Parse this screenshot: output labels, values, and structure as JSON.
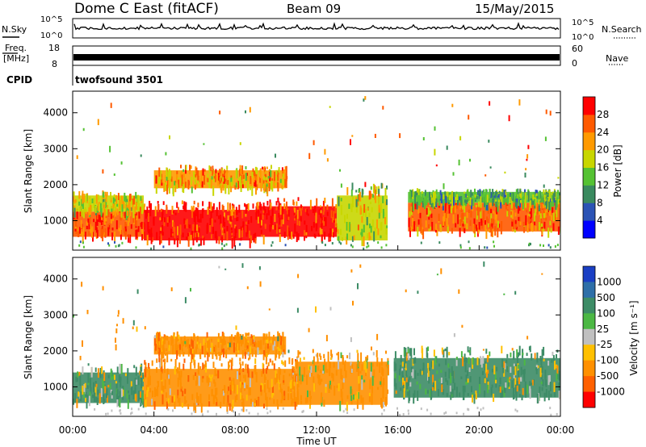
{
  "header": {
    "station": "Dome C East (fitACF)",
    "beam": "Beam 09",
    "date": "15/May/2015"
  },
  "sky_panel": {
    "left_label": "N.Sky",
    "left_ticks": [
      "10^5",
      "10^0"
    ],
    "right_label": "N.Search",
    "right_ticks": [
      "10^5",
      "10^0"
    ]
  },
  "freq_panel": {
    "left_label_1": "Freq.",
    "left_label_2": "[MHz]",
    "left_ticks": [
      "18",
      "8"
    ],
    "right_label": "Nave",
    "right_ticks": [
      "60",
      "0"
    ]
  },
  "cpid": {
    "label": "CPID",
    "value": "twofsound 3501"
  },
  "colors": {
    "power_scale": [
      "#0000ff",
      "#2b53b5",
      "#3a8a5f",
      "#55c233",
      "#c8d600",
      "#ff9a00",
      "#ff5a00",
      "#ff0000"
    ],
    "velocity_scale": [
      "#1a3fc4",
      "#2e6fa8",
      "#3d8c66",
      "#4cb844",
      "#c0c0c0",
      "#ffc000",
      "#ff9000",
      "#ff6000",
      "#ff0000"
    ]
  },
  "chart_data": [
    {
      "type": "heatmap",
      "title": "",
      "xlabel": "Time UT",
      "ylabel": "Slant Range [km]",
      "x_ticks": [
        "00:00",
        "04:00",
        "08:00",
        "12:00",
        "16:00",
        "20:00",
        "00:00"
      ],
      "y_ticks": [
        1000,
        2000,
        3000,
        4000
      ],
      "xlim_hours": [
        0,
        24
      ],
      "ylim_km": [
        180,
        4600
      ],
      "colorbar": {
        "label": "Power [dB]",
        "ticks": [
          "4",
          "8",
          "12",
          "16",
          "20",
          "24",
          "28"
        ],
        "range": [
          0,
          32
        ]
      },
      "regions": [
        {
          "t0": 0.0,
          "t1": 3.5,
          "r0": 550,
          "r1": 1250,
          "value": 27
        },
        {
          "t0": 0.0,
          "t1": 3.5,
          "r0": 1250,
          "r1": 1700,
          "value": 18
        },
        {
          "t0": 3.5,
          "t1": 9.0,
          "r0": 450,
          "r1": 1300,
          "value": 29
        },
        {
          "t0": 9.0,
          "t1": 13.0,
          "r0": 550,
          "r1": 1400,
          "value": 28
        },
        {
          "t0": 13.0,
          "t1": 15.5,
          "r0": 450,
          "r1": 1700,
          "value": 18
        },
        {
          "t0": 4.0,
          "t1": 10.5,
          "r0": 1900,
          "r1": 2400,
          "value": 22
        },
        {
          "t0": 16.5,
          "t1": 24.0,
          "r0": 700,
          "r1": 1500,
          "value": 24
        },
        {
          "t0": 16.5,
          "t1": 24.0,
          "r0": 1500,
          "r1": 1800,
          "value": 13
        }
      ]
    },
    {
      "type": "heatmap",
      "title": "",
      "xlabel": "Time UT",
      "ylabel": "Slant Range [km]",
      "x_ticks": [
        "00:00",
        "04:00",
        "08:00",
        "12:00",
        "16:00",
        "20:00",
        "00:00"
      ],
      "y_ticks": [
        1000,
        2000,
        3000,
        4000
      ],
      "xlim_hours": [
        0,
        24
      ],
      "ylim_km": [
        180,
        4600
      ],
      "colorbar": {
        "label": "Velocity [m s⁻¹]",
        "ticks": [
          "1000",
          "500",
          "100",
          "25",
          "-25",
          "-100",
          "-500",
          "-1000"
        ]
      },
      "regions": [
        {
          "t0": 0.0,
          "t1": 3.5,
          "r0": 550,
          "r1": 1400,
          "value": 150
        },
        {
          "t0": 3.5,
          "t1": 11.0,
          "r0": 450,
          "r1": 1500,
          "value": -300
        },
        {
          "t0": 11.0,
          "t1": 15.5,
          "r0": 500,
          "r1": 1700,
          "value": -200
        },
        {
          "t0": 4.0,
          "t1": 10.5,
          "r0": 1900,
          "r1": 2400,
          "value": -300
        },
        {
          "t0": 15.8,
          "t1": 24.0,
          "r0": 700,
          "r1": 1800,
          "value": 150
        }
      ]
    }
  ]
}
